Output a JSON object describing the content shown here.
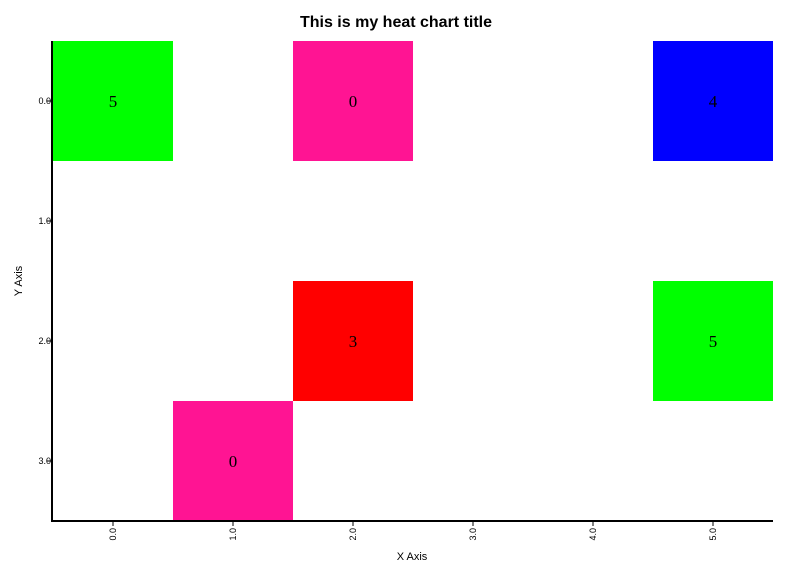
{
  "chart_data": {
    "type": "heatmap",
    "title": "This is my heat chart title",
    "xlabel": "X Axis",
    "ylabel": "Y Axis",
    "x_ticks": [
      "0.0",
      "1.0",
      "2.0",
      "3.0",
      "4.0",
      "5.0"
    ],
    "y_ticks": [
      "0.0",
      "1.0",
      "2.0",
      "3.0"
    ],
    "xlim": [
      -0.5,
      5.5
    ],
    "ylim": [
      -0.5,
      3.5
    ],
    "y_axis_inverted": true,
    "grid": false,
    "legend": "none",
    "cells": [
      {
        "x": 0,
        "y": 0,
        "value": 5,
        "color": "#00ff00"
      },
      {
        "x": 2,
        "y": 0,
        "value": 0,
        "color": "#ff1493"
      },
      {
        "x": 5,
        "y": 0,
        "value": 4,
        "color": "#0000ff"
      },
      {
        "x": 2,
        "y": 2,
        "value": 3,
        "color": "#ff0000"
      },
      {
        "x": 5,
        "y": 2,
        "value": 5,
        "color": "#00ff00"
      },
      {
        "x": 1,
        "y": 3,
        "value": 0,
        "color": "#ff1493"
      }
    ]
  }
}
